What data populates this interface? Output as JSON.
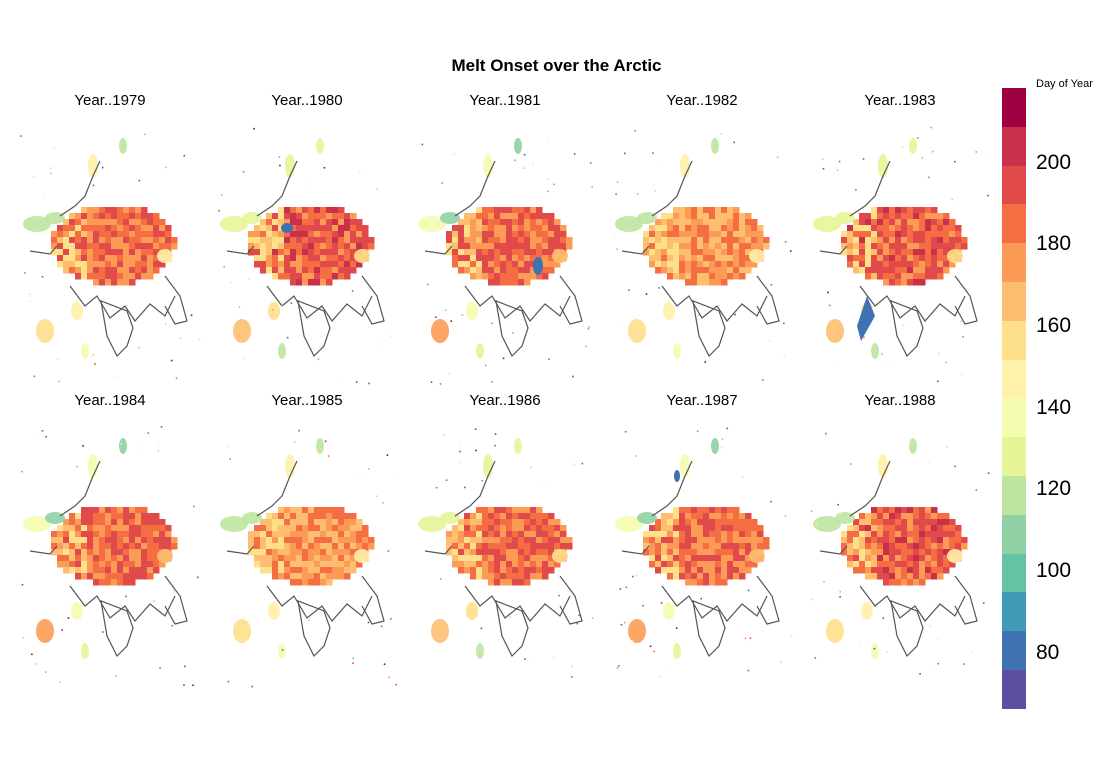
{
  "figure": {
    "title": "Melt Onset over the Arctic"
  },
  "panels": [
    {
      "label": "Year..1979",
      "variant": 0
    },
    {
      "label": "Year..1980",
      "variant": 1
    },
    {
      "label": "Year..1981",
      "variant": 2
    },
    {
      "label": "Year..1982",
      "variant": 3
    },
    {
      "label": "Year..1983",
      "variant": 4
    },
    {
      "label": "Year..1984",
      "variant": 5
    },
    {
      "label": "Year..1985",
      "variant": 6
    },
    {
      "label": "Year..1986",
      "variant": 7
    },
    {
      "label": "Year..1987",
      "variant": 8
    },
    {
      "label": "Year..1988",
      "variant": 9
    }
  ],
  "legend": {
    "title": "Day of Year",
    "ticks": [
      "80",
      "100",
      "120",
      "140",
      "160",
      "180",
      "200"
    ],
    "tick_values": [
      80,
      100,
      120,
      140,
      160,
      180,
      200
    ],
    "range": [
      66,
      218
    ],
    "colors": [
      "#5e4fa2",
      "#3f72b3",
      "#3f9ab6",
      "#66c2a5",
      "#8fd0a4",
      "#bee5a0",
      "#e6f598",
      "#f5fbb0",
      "#fff1a8",
      "#fee08b",
      "#fdbf6f",
      "#fc9b56",
      "#f46d43",
      "#e04a4a",
      "#c9314a",
      "#9e0142"
    ]
  }
}
